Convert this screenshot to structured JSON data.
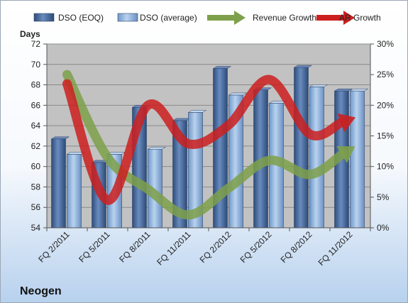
{
  "chart_data": {
    "type": "bar",
    "company": "Neogen",
    "categories": [
      "FQ 2/2011",
      "FQ 5/2011",
      "FQ 8/2011",
      "FQ 11/2011",
      "FQ 2/2012",
      "FQ 5/2012",
      "FQ 8/2012",
      "FQ 11/2012"
    ],
    "series": [
      {
        "name": "DSO (EOQ)",
        "kind": "bar",
        "axis": "left",
        "color": "#4a6a9a",
        "values": [
          62.7,
          60.4,
          65.8,
          64.5,
          69.6,
          67.5,
          69.7,
          67.4
        ]
      },
      {
        "name": "DSO (average)",
        "kind": "bar",
        "axis": "left",
        "color": "#8fb3dc",
        "values": [
          61.2,
          61.2,
          61.7,
          65.3,
          67.0,
          66.2,
          67.8,
          67.4
        ]
      },
      {
        "name": "Revenue Growth",
        "kind": "line",
        "axis": "right",
        "color": "#7ea04a",
        "values": [
          25.0,
          11.5,
          6.3,
          2.1,
          6.5,
          11.0,
          8.7,
          12.8
        ]
      },
      {
        "name": "AR Growth",
        "kind": "line",
        "axis": "right",
        "color": "#cc1f1f",
        "values": [
          23.5,
          4.5,
          20.0,
          13.7,
          16.8,
          24.2,
          15.3,
          17.7
        ]
      }
    ],
    "ylabel": "Days",
    "ylim": [
      54,
      72
    ],
    "yticks": [
      "54",
      "56",
      "58",
      "60",
      "62",
      "64",
      "66",
      "68",
      "70",
      "72"
    ],
    "y2lim": [
      0,
      30
    ],
    "y2ticks": [
      "0%",
      "5%",
      "10%",
      "15%",
      "20%",
      "25%",
      "30%"
    ],
    "grid": true,
    "legend_position": "top"
  }
}
